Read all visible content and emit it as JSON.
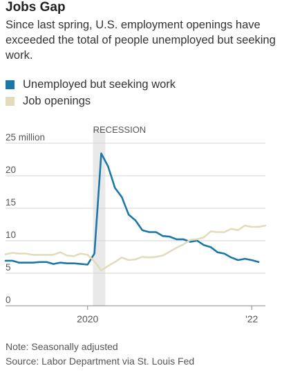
{
  "title": "Jobs Gap",
  "subtitle": "Since last spring, U.S. employment openings have exceeded the total of people unemployed but seeking work.",
  "note": "Note: Seasonally adjusted",
  "source": "Source: Labor Department via St. Louis Fed",
  "colors": {
    "unemployed": "#1a77a6",
    "openings": "#e3dcbc",
    "recession": "#e9e9e9",
    "grid": "#d3d3d3",
    "text": "#333333"
  },
  "chart_data": {
    "type": "line",
    "legend_placement": "top",
    "grid": true,
    "y_unit_label": "25 million",
    "ylim": [
      0,
      25
    ],
    "yticks": [
      0,
      5,
      10,
      15,
      20,
      25
    ],
    "ytick_labels": [
      "0",
      "5",
      "10",
      "15",
      "20",
      "25 million"
    ],
    "xlim": [
      "2019-01",
      "2022-03"
    ],
    "xticks": [
      {
        "value": "2020-01",
        "label": "2020"
      },
      {
        "value": "2022-01",
        "label": "'22"
      }
    ],
    "recession": {
      "label": "RECESSION",
      "start": "2020-02",
      "end": "2020-04"
    },
    "series": [
      {
        "name": "Unemployed but seeking work",
        "key": "unemployed",
        "points": [
          [
            "2019-01",
            6.5
          ],
          [
            "2019-02",
            6.5
          ],
          [
            "2019-03",
            6.2
          ],
          [
            "2019-04",
            6.2
          ],
          [
            "2019-05",
            6.2
          ],
          [
            "2019-06",
            6.3
          ],
          [
            "2019-07",
            6.3
          ],
          [
            "2019-08",
            6.0
          ],
          [
            "2019-09",
            6.2
          ],
          [
            "2019-10",
            6.1
          ],
          [
            "2019-11",
            6.1
          ],
          [
            "2019-12",
            6.0
          ],
          [
            "2020-01",
            5.9
          ],
          [
            "2020-02",
            7.6
          ],
          [
            "2020-03",
            23.0
          ],
          [
            "2020-04",
            21.0
          ],
          [
            "2020-05",
            17.7
          ],
          [
            "2020-06",
            16.3
          ],
          [
            "2020-07",
            13.6
          ],
          [
            "2020-08",
            12.7
          ],
          [
            "2020-09",
            11.2
          ],
          [
            "2020-10",
            10.9
          ],
          [
            "2020-11",
            10.9
          ],
          [
            "2020-12",
            10.3
          ],
          [
            "2021-01",
            10.2
          ],
          [
            "2021-02",
            9.8
          ],
          [
            "2021-03",
            9.8
          ],
          [
            "2021-04",
            9.4
          ],
          [
            "2021-05",
            9.6
          ],
          [
            "2021-06",
            8.9
          ],
          [
            "2021-07",
            8.6
          ],
          [
            "2021-08",
            7.8
          ],
          [
            "2021-09",
            7.6
          ],
          [
            "2021-10",
            7.0
          ],
          [
            "2021-11",
            6.6
          ],
          [
            "2021-12",
            6.8
          ],
          [
            "2022-01",
            6.6
          ],
          [
            "2022-02",
            6.3
          ]
        ]
      },
      {
        "name": "Job openings",
        "key": "openings",
        "points": [
          [
            "2019-01",
            7.5
          ],
          [
            "2019-02",
            7.7
          ],
          [
            "2019-03",
            7.6
          ],
          [
            "2019-04",
            7.6
          ],
          [
            "2019-05",
            7.4
          ],
          [
            "2019-06",
            7.4
          ],
          [
            "2019-07",
            7.4
          ],
          [
            "2019-08",
            7.4
          ],
          [
            "2019-09",
            7.8
          ],
          [
            "2019-10",
            7.3
          ],
          [
            "2019-11",
            7.2
          ],
          [
            "2019-12",
            7.6
          ],
          [
            "2020-01",
            7.4
          ],
          [
            "2020-02",
            6.4
          ],
          [
            "2020-03",
            5.0
          ],
          [
            "2020-04",
            5.7
          ],
          [
            "2020-05",
            6.3
          ],
          [
            "2020-06",
            7.0
          ],
          [
            "2020-07",
            6.6
          ],
          [
            "2020-08",
            6.7
          ],
          [
            "2020-09",
            7.1
          ],
          [
            "2020-10",
            7.0
          ],
          [
            "2020-11",
            7.1
          ],
          [
            "2020-12",
            7.3
          ],
          [
            "2021-01",
            7.9
          ],
          [
            "2021-02",
            8.5
          ],
          [
            "2021-03",
            9.0
          ],
          [
            "2021-04",
            9.7
          ],
          [
            "2021-05",
            9.8
          ],
          [
            "2021-06",
            10.1
          ],
          [
            "2021-07",
            11.0
          ],
          [
            "2021-08",
            10.9
          ],
          [
            "2021-09",
            10.9
          ],
          [
            "2021-10",
            11.4
          ],
          [
            "2021-11",
            11.2
          ],
          [
            "2021-12",
            11.9
          ],
          [
            "2022-01",
            11.7
          ],
          [
            "2022-02",
            11.7
          ],
          [
            "2022-03",
            11.9
          ]
        ]
      }
    ]
  }
}
